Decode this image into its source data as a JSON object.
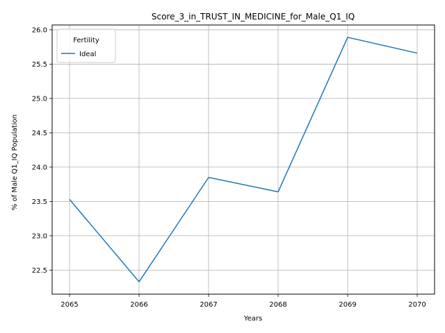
{
  "chart_data": {
    "type": "line",
    "title": "Score_3_in_TRUST_IN_MEDICINE_for_Male_Q1_IQ",
    "xlabel": "Years",
    "ylabel": "% of Male Q1_IQ Population",
    "x": [
      2065,
      2066,
      2067,
      2068,
      2069,
      2070
    ],
    "x_ticks": [
      "2065",
      "2066",
      "2067",
      "2068",
      "2069",
      "2070"
    ],
    "y_ticks": [
      "22.5",
      "23.0",
      "23.5",
      "24.0",
      "24.5",
      "25.0",
      "25.5",
      "26.0"
    ],
    "xlim": [
      2064.75,
      2070.25
    ],
    "ylim": [
      22.15,
      26.07
    ],
    "grid": true,
    "legend": {
      "title": "Fertility",
      "placement": "top-left"
    },
    "series": [
      {
        "name": "Ideal",
        "color": "#1f77b4",
        "values": [
          23.53,
          22.33,
          23.85,
          23.64,
          25.89,
          25.66
        ]
      }
    ]
  }
}
